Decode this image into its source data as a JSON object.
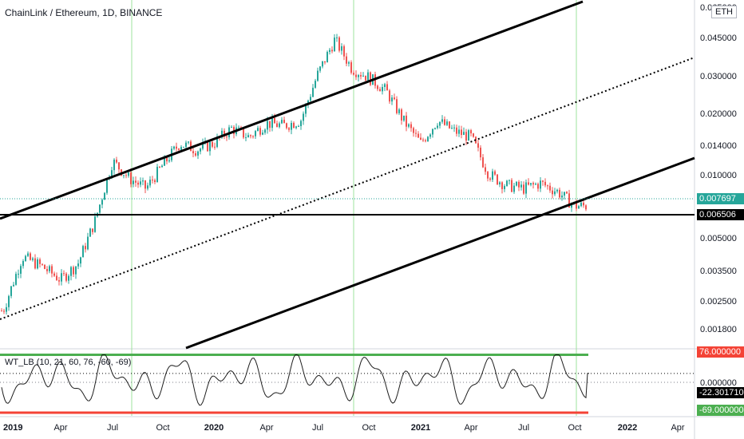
{
  "header": {
    "title": "ChainLink / Ethereum, 1D, BINANCE"
  },
  "indicator": {
    "label": "WT_LB (10, 21, 60, 76, -60, -69)"
  },
  "currency_button": {
    "label": "ETH"
  },
  "colors": {
    "up": "#26a69a",
    "down": "#ef5350",
    "overbought": "#f44336",
    "oversold": "#4caf50",
    "price_tag": "#26a69a",
    "level_tag": "#000000",
    "vline": "#9ee39e"
  },
  "tags": {
    "last_price": "0.007697",
    "support": "0.006506",
    "overbought": "76.000000",
    "wt_value": "-22.301710",
    "oversold": "-69.000000"
  },
  "chart_data": [
    {
      "type": "candlestick",
      "title": "ChainLink / Ethereum, 1D, BINANCE",
      "y_scale": "log",
      "y_ticks": [
        "0.065000",
        "0.045000",
        "0.030000",
        "0.020000",
        "0.014000",
        "0.010000",
        "0.007697",
        "0.006506",
        "0.005000",
        "0.003500",
        "0.002500",
        "0.001800"
      ],
      "x_ticks": [
        "2019",
        "Apr",
        "Jul",
        "Oct",
        "2020",
        "Apr",
        "Jul",
        "Oct",
        "2021",
        "Apr",
        "Jul",
        "Oct",
        "2022",
        "Apr"
      ],
      "series": [
        {
          "values": [
            [
              "2019-01",
              0.0022
            ],
            [
              "2019-02",
              0.004
            ],
            [
              "2019-03",
              0.0036
            ],
            [
              "2019-04",
              0.0031
            ],
            [
              "2019-05",
              0.0037
            ],
            [
              "2019-06",
              0.006
            ],
            [
              "2019-07",
              0.0115
            ],
            [
              "2019-08",
              0.0095
            ],
            [
              "2019-09",
              0.0085
            ],
            [
              "2019-10",
              0.011
            ],
            [
              "2019-11",
              0.014
            ],
            [
              "2019-12",
              0.013
            ],
            [
              "2020-01",
              0.014
            ],
            [
              "2020-02",
              0.0165
            ],
            [
              "2020-03",
              0.015
            ],
            [
              "2020-04",
              0.0175
            ],
            [
              "2020-05",
              0.017
            ],
            [
              "2020-06",
              0.018
            ],
            [
              "2020-07",
              0.03
            ],
            [
              "2020-08",
              0.044
            ],
            [
              "2020-09",
              0.032
            ],
            [
              "2020-10",
              0.029
            ],
            [
              "2020-11",
              0.025
            ],
            [
              "2020-12",
              0.018
            ],
            [
              "2021-01",
              0.014
            ],
            [
              "2021-02",
              0.018
            ],
            [
              "2021-03",
              0.016
            ],
            [
              "2021-04",
              0.015
            ],
            [
              "2021-05",
              0.01
            ],
            [
              "2021-06",
              0.0088
            ],
            [
              "2021-07",
              0.0085
            ],
            [
              "2021-08",
              0.009
            ],
            [
              "2021-09",
              0.0082
            ],
            [
              "2021-10",
              0.007
            ]
          ]
        }
      ],
      "reference_lines": [
        {
          "value": 0.006506
        }
      ]
    },
    {
      "type": "line",
      "title": "WT_LB (10, 21, 60, 76, -60, -69)",
      "y_ticks": [
        "76.000000",
        "0.000000",
        "-22.301710",
        "-69.000000"
      ],
      "levels": [
        76,
        -69
      ],
      "last_value": -22.30171
    }
  ]
}
